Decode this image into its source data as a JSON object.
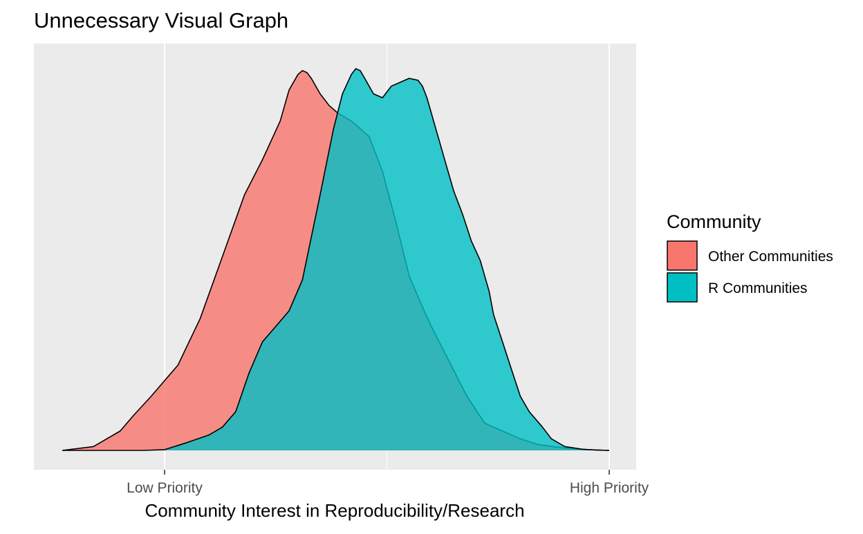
{
  "chart_data": {
    "type": "area",
    "subtype": "density",
    "title": "Unnecessary Visual Graph",
    "xlabel": "Community Interest in Reproducibility/Research",
    "ylabel": "",
    "xlim": [
      -0.3,
      1.05
    ],
    "ylim": [
      0,
      1.05
    ],
    "x_ticks": [
      {
        "value": 0,
        "label": "Low Priority"
      },
      {
        "value": 1,
        "label": "High Priority"
      }
    ],
    "x_minor_ticks": [
      0.5
    ],
    "y_ticks_visible": false,
    "grid": true,
    "legend": {
      "title": "Community",
      "position": "right",
      "entries": [
        {
          "label": "Other Communities",
          "color": "#F8766D"
        },
        {
          "label": "R Communities",
          "color": "#00BFC4"
        }
      ]
    },
    "colors": {
      "panel_background": "#EBEBEB",
      "grid": "#FFFFFF",
      "outline": "#000000"
    },
    "series": [
      {
        "name": "Other Communities",
        "color": "#F8766D",
        "opacity": 0.8,
        "x": [
          -0.23,
          -0.16,
          -0.1,
          -0.07,
          -0.03,
          0.0,
          0.03,
          0.08,
          0.13,
          0.18,
          0.22,
          0.26,
          0.28,
          0.3,
          0.31,
          0.32,
          0.33,
          0.35,
          0.37,
          0.39,
          0.42,
          0.46,
          0.49,
          0.52,
          0.55,
          0.58,
          0.6,
          0.64,
          0.68,
          0.72,
          0.76,
          0.8,
          0.84,
          0.9,
          0.95,
          1.0
        ],
        "y": [
          0.0,
          0.01,
          0.05,
          0.09,
          0.14,
          0.18,
          0.22,
          0.34,
          0.5,
          0.66,
          0.75,
          0.85,
          0.93,
          0.97,
          0.98,
          0.975,
          0.96,
          0.92,
          0.89,
          0.87,
          0.85,
          0.81,
          0.72,
          0.59,
          0.45,
          0.37,
          0.32,
          0.23,
          0.14,
          0.07,
          0.05,
          0.03,
          0.015,
          0.006,
          0.002,
          0.0
        ]
      },
      {
        "name": "R Communities",
        "color": "#00BFC4",
        "opacity": 0.8,
        "x": [
          -0.23,
          -0.15,
          -0.05,
          0.0,
          0.05,
          0.1,
          0.13,
          0.16,
          0.19,
          0.22,
          0.25,
          0.28,
          0.31,
          0.35,
          0.38,
          0.4,
          0.42,
          0.43,
          0.44,
          0.45,
          0.47,
          0.49,
          0.5,
          0.51,
          0.53,
          0.55,
          0.57,
          0.58,
          0.59,
          0.6,
          0.61,
          0.62,
          0.63,
          0.65,
          0.67,
          0.69,
          0.71,
          0.73,
          0.74,
          0.76,
          0.78,
          0.8,
          0.82,
          0.85,
          0.87,
          0.9,
          0.94,
          0.97,
          1.0
        ],
        "y": [
          0.0,
          0.0,
          0.0,
          0.002,
          0.02,
          0.04,
          0.06,
          0.1,
          0.2,
          0.28,
          0.32,
          0.36,
          0.44,
          0.66,
          0.83,
          0.92,
          0.97,
          0.985,
          0.98,
          0.96,
          0.92,
          0.91,
          0.925,
          0.94,
          0.95,
          0.96,
          0.955,
          0.94,
          0.91,
          0.87,
          0.83,
          0.79,
          0.75,
          0.67,
          0.61,
          0.54,
          0.49,
          0.41,
          0.35,
          0.28,
          0.21,
          0.14,
          0.1,
          0.06,
          0.03,
          0.01,
          0.003,
          0.001,
          0.0
        ]
      }
    ]
  }
}
